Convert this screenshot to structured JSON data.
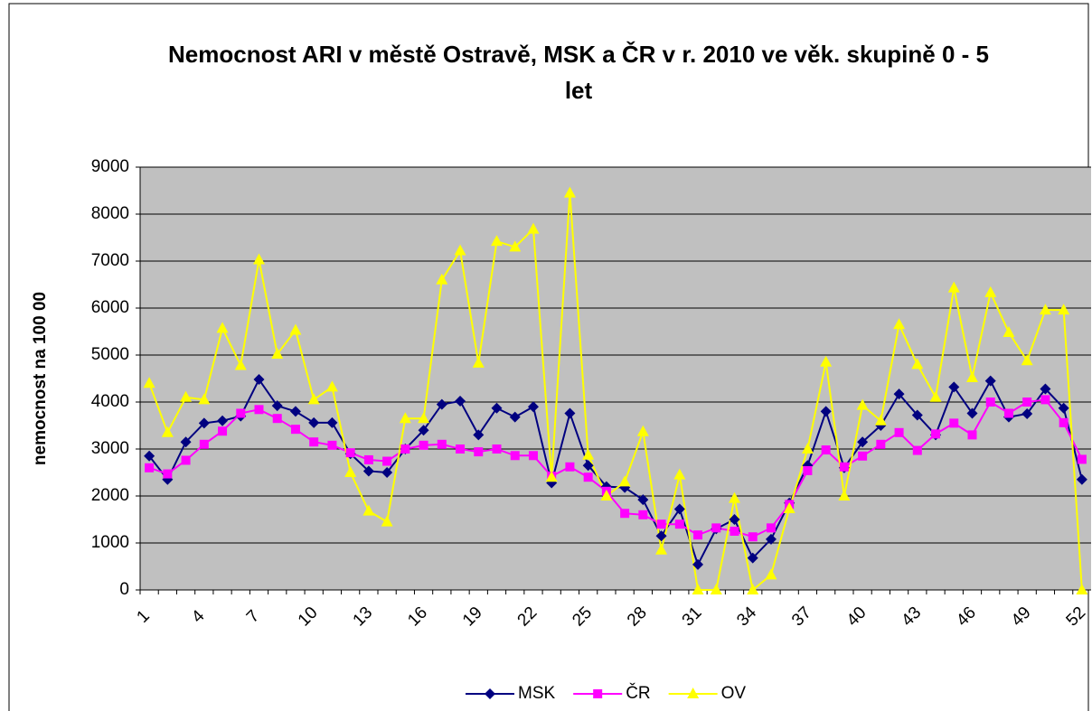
{
  "chart_data": {
    "type": "line",
    "title": "Nemocnost ARI v městě Ostravě, MSK a ČR v r. 2010 ve věk. skupině 0 - 5 let",
    "y_label": "nemocnost na 100 00",
    "categories": [
      1,
      null,
      null,
      4,
      null,
      null,
      7,
      null,
      null,
      10,
      null,
      null,
      13,
      null,
      null,
      16,
      null,
      null,
      19,
      null,
      null,
      22,
      null,
      null,
      25,
      null,
      null,
      28,
      null,
      null,
      31,
      null,
      null,
      34,
      null,
      null,
      37,
      null,
      null,
      40,
      null,
      null,
      43,
      null,
      null,
      46,
      null,
      null,
      49,
      null,
      null,
      52
    ],
    "ylim": [
      0,
      9000
    ],
    "yticks": [
      0,
      1000,
      2000,
      3000,
      4000,
      5000,
      6000,
      7000,
      8000,
      9000
    ],
    "grid": true,
    "legend": "bottom",
    "series": [
      {
        "name": "MSK",
        "color": "#000080",
        "marker": "diamond",
        "values": [
          2850,
          2350,
          3150,
          3550,
          3600,
          3700,
          4480,
          3920,
          3800,
          3560,
          3560,
          2900,
          2530,
          2500,
          3000,
          3400,
          3950,
          4020,
          3300,
          3870,
          3680,
          3900,
          2280,
          3760,
          2650,
          2200,
          2180,
          1920,
          1150,
          1720,
          540,
          1300,
          1500,
          680,
          1080,
          1850,
          2650,
          3800,
          2600,
          3150,
          3500,
          4170,
          3720,
          3300,
          4320,
          3760,
          4450,
          3680,
          3750,
          4280,
          3870,
          2350
        ]
      },
      {
        "name": "ČR",
        "color": "#ff00ff",
        "marker": "square",
        "values": [
          2600,
          2470,
          2760,
          3100,
          3380,
          3760,
          3840,
          3650,
          3420,
          3150,
          3080,
          2920,
          2770,
          2740,
          3000,
          3080,
          3100,
          3000,
          2940,
          3000,
          2860,
          2860,
          2420,
          2620,
          2400,
          2100,
          1630,
          1600,
          1400,
          1400,
          1170,
          1320,
          1250,
          1130,
          1320,
          1820,
          2540,
          2980,
          2620,
          2850,
          3100,
          3350,
          2970,
          3320,
          3550,
          3300,
          4000,
          3760,
          4000,
          4050,
          3560,
          2780
        ]
      },
      {
        "name": "OV",
        "color": "#ffff00",
        "marker": "triangle",
        "values": [
          4400,
          3350,
          4100,
          4050,
          5570,
          4780,
          7030,
          5020,
          5530,
          4050,
          4320,
          2500,
          1680,
          1450,
          3650,
          3650,
          6600,
          7220,
          4830,
          7420,
          7300,
          7680,
          2400,
          8450,
          2870,
          2000,
          2300,
          3370,
          850,
          2450,
          0,
          0,
          1950,
          0,
          320,
          1730,
          3000,
          4850,
          2000,
          3930,
          3600,
          5650,
          4800,
          4100,
          6430,
          4520,
          6330,
          5480,
          4880,
          5960,
          5960,
          0
        ]
      }
    ]
  }
}
